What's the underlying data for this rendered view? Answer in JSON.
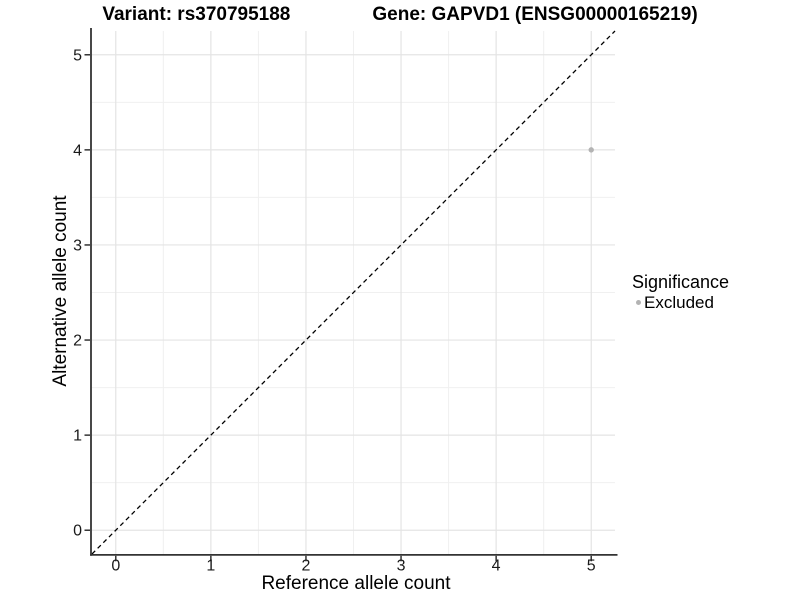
{
  "chart_data": {
    "type": "scatter",
    "title_left": "Variant: rs370795188",
    "title_right": "Gene: GAPVD1 (ENSG00000165219)",
    "xlabel": "Reference allele count",
    "ylabel": "Alternative allele count",
    "xlim": [
      -0.25,
      5.25
    ],
    "ylim": [
      -0.25,
      5.25
    ],
    "x_ticks": [
      0,
      1,
      2,
      3,
      4,
      5
    ],
    "y_ticks": [
      0,
      1,
      2,
      3,
      4,
      5
    ],
    "grid": "major+minor",
    "reference_line": {
      "type": "diagonal",
      "slope": 1,
      "intercept": 0,
      "style": "dashed",
      "color": "#000000"
    },
    "series": [
      {
        "name": "Excluded",
        "color": "#b3b3b3",
        "points": [
          {
            "x": 5,
            "y": 4
          }
        ]
      }
    ],
    "legend": {
      "title": "Significance",
      "position": "right",
      "items": [
        {
          "label": "Excluded",
          "color": "#b3b3b3"
        }
      ]
    },
    "style_colors": {
      "panel_background": "#ffffff",
      "grid_major": "#e4e4e4",
      "grid_minor": "#f0f0f0",
      "axis_line": "#333333",
      "tick_label": "#1a1a1a"
    }
  }
}
